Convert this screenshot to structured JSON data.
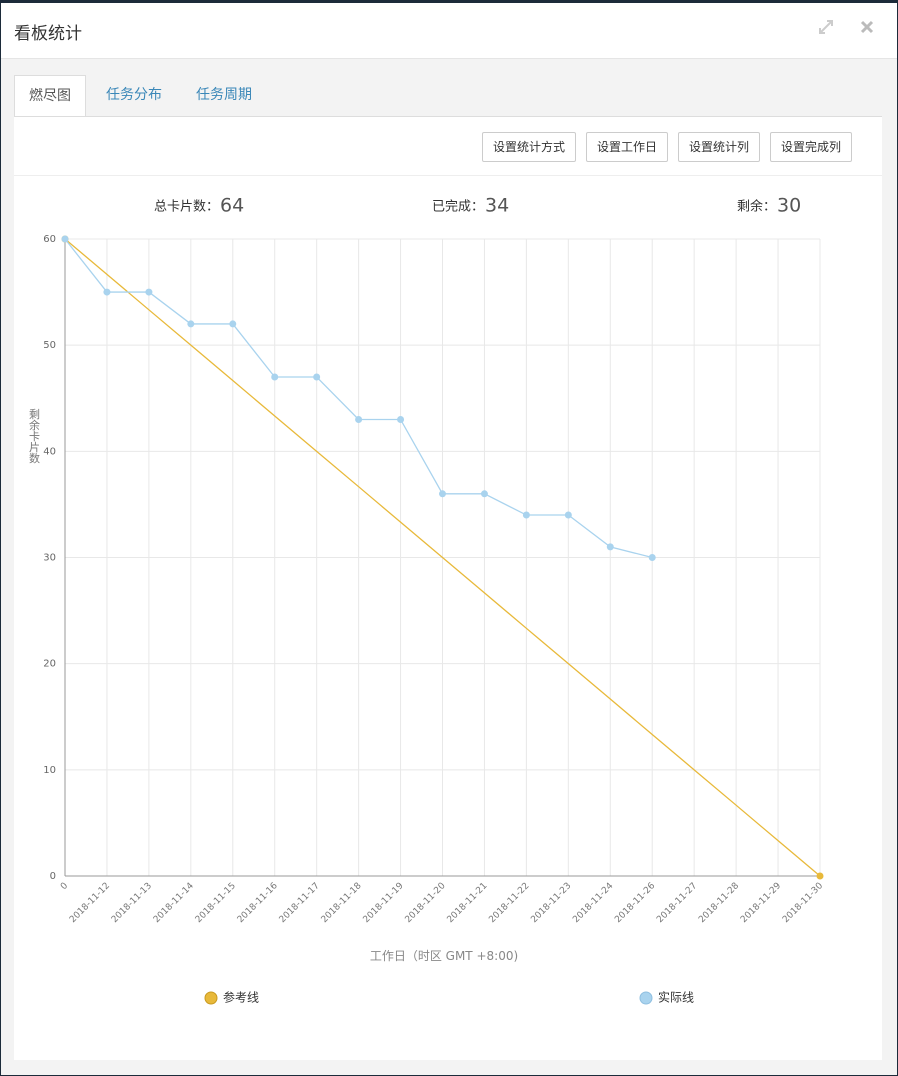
{
  "header": {
    "title": "看板统计"
  },
  "tabs": [
    "燃尽图",
    "任务分布",
    "任务周期"
  ],
  "buttons": [
    "设置统计方式",
    "设置工作日",
    "设置统计列",
    "设置完成列"
  ],
  "stats": [
    {
      "label": "总卡片数：",
      "value": 64
    },
    {
      "label": "已完成：",
      "value": 34
    },
    {
      "label": "剩余：",
      "value": 30
    }
  ],
  "chart_data": {
    "type": "line",
    "categories": [
      "0",
      "2018-11-12",
      "2018-11-13",
      "2018-11-14",
      "2018-11-15",
      "2018-11-16",
      "2018-11-17",
      "2018-11-18",
      "2018-11-19",
      "2018-11-20",
      "2018-11-21",
      "2018-11-22",
      "2018-11-23",
      "2018-11-24",
      "2018-11-26",
      "2018-11-27",
      "2018-11-28",
      "2018-11-29",
      "2018-11-30"
    ],
    "series": [
      {
        "name": "参考线",
        "color": "#e8b93a",
        "values": [
          60,
          56.67,
          53.33,
          50,
          46.67,
          43.33,
          40,
          36.67,
          33.33,
          30,
          26.67,
          23.33,
          20,
          16.67,
          13.33,
          10,
          6.67,
          3.33,
          0
        ]
      },
      {
        "name": "实际线",
        "color": "#a9d3ee",
        "values": [
          60,
          55,
          55,
          52,
          52,
          47,
          47,
          43,
          43,
          36,
          36,
          34,
          34,
          31,
          30,
          null,
          null,
          null,
          null
        ]
      }
    ],
    "ylim": [
      0,
      60
    ],
    "yticks": [
      0,
      10,
      20,
      30,
      40,
      50,
      60
    ],
    "grid": true,
    "ylabel": "剩余卡片数",
    "xlabel": "工作日（时区 GMT +8:00)"
  }
}
